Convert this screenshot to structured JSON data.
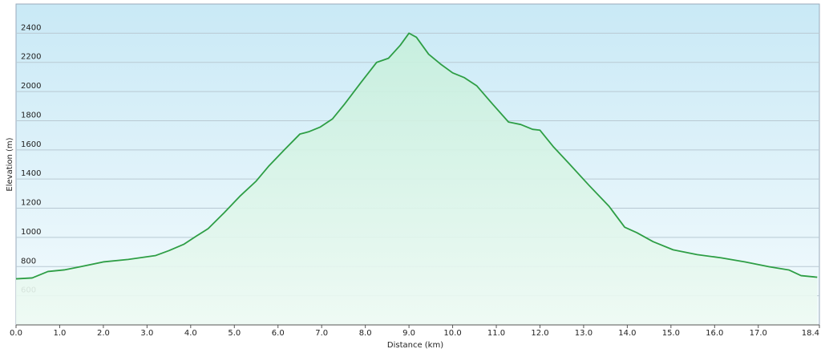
{
  "chart_data": {
    "type": "area",
    "x_label": "Distance  (km)",
    "y_label": "Elevation (m)",
    "x": [
      0,
      0.37,
      0.73,
      1.1,
      1.47,
      2.0,
      2.57,
      3.2,
      3.5,
      3.85,
      4.13,
      4.4,
      4.77,
      5.14,
      5.5,
      5.78,
      6.15,
      6.5,
      6.7,
      6.97,
      7.25,
      7.52,
      7.9,
      8.26,
      8.53,
      8.8,
      9.0,
      9.17,
      9.45,
      9.72,
      10.0,
      10.27,
      10.55,
      10.92,
      11.28,
      11.56,
      11.83,
      12.0,
      12.3,
      12.66,
      13.12,
      13.58,
      13.94,
      14.22,
      14.59,
      15.05,
      15.6,
      16.15,
      16.7,
      17.25,
      17.7,
      17.98,
      18.35
    ],
    "series": [
      {
        "color": "#2e9e45",
        "values": [
          716,
          722,
          766,
          777,
          799,
          832,
          849,
          876,
          909,
          954,
          1009,
          1060,
          1170,
          1286,
          1386,
          1486,
          1602,
          1708,
          1724,
          1757,
          1813,
          1912,
          2062,
          2200,
          2228,
          2317,
          2400,
          2372,
          2256,
          2189,
          2128,
          2095,
          2040,
          1912,
          1791,
          1774,
          1741,
          1735,
          1624,
          1508,
          1358,
          1214,
          1070,
          1032,
          971,
          915,
          882,
          860,
          832,
          799,
          777,
          738,
          727
        ]
      }
    ],
    "xlim": [
      0,
      18.4
    ],
    "xticks": [
      {
        "value": 0,
        "label": "0.0"
      },
      {
        "value": 1,
        "label": "1.0"
      },
      {
        "value": 2,
        "label": "2.0"
      },
      {
        "value": 3,
        "label": "3.0"
      },
      {
        "value": 4,
        "label": "4.0"
      },
      {
        "value": 5,
        "label": "5.0"
      },
      {
        "value": 6,
        "label": "6.0"
      },
      {
        "value": 7,
        "label": "7.0"
      },
      {
        "value": 8,
        "label": "8.0"
      },
      {
        "value": 9,
        "label": "9.0"
      },
      {
        "value": 10,
        "label": "10.0"
      },
      {
        "value": 11,
        "label": "11.0"
      },
      {
        "value": 12,
        "label": "12.0"
      },
      {
        "value": 13,
        "label": "13.0"
      },
      {
        "value": 14,
        "label": "14.0"
      },
      {
        "value": 15,
        "label": "15.0"
      },
      {
        "value": 16,
        "label": "16.0"
      },
      {
        "value": 17,
        "label": "17.0"
      },
      18.4
    ],
    "ylim": [
      400,
      2600
    ],
    "yticks": [
      600,
      800,
      1000,
      1200,
      1400,
      1600,
      1800,
      2000,
      2200,
      2400
    ],
    "grid": true
  }
}
